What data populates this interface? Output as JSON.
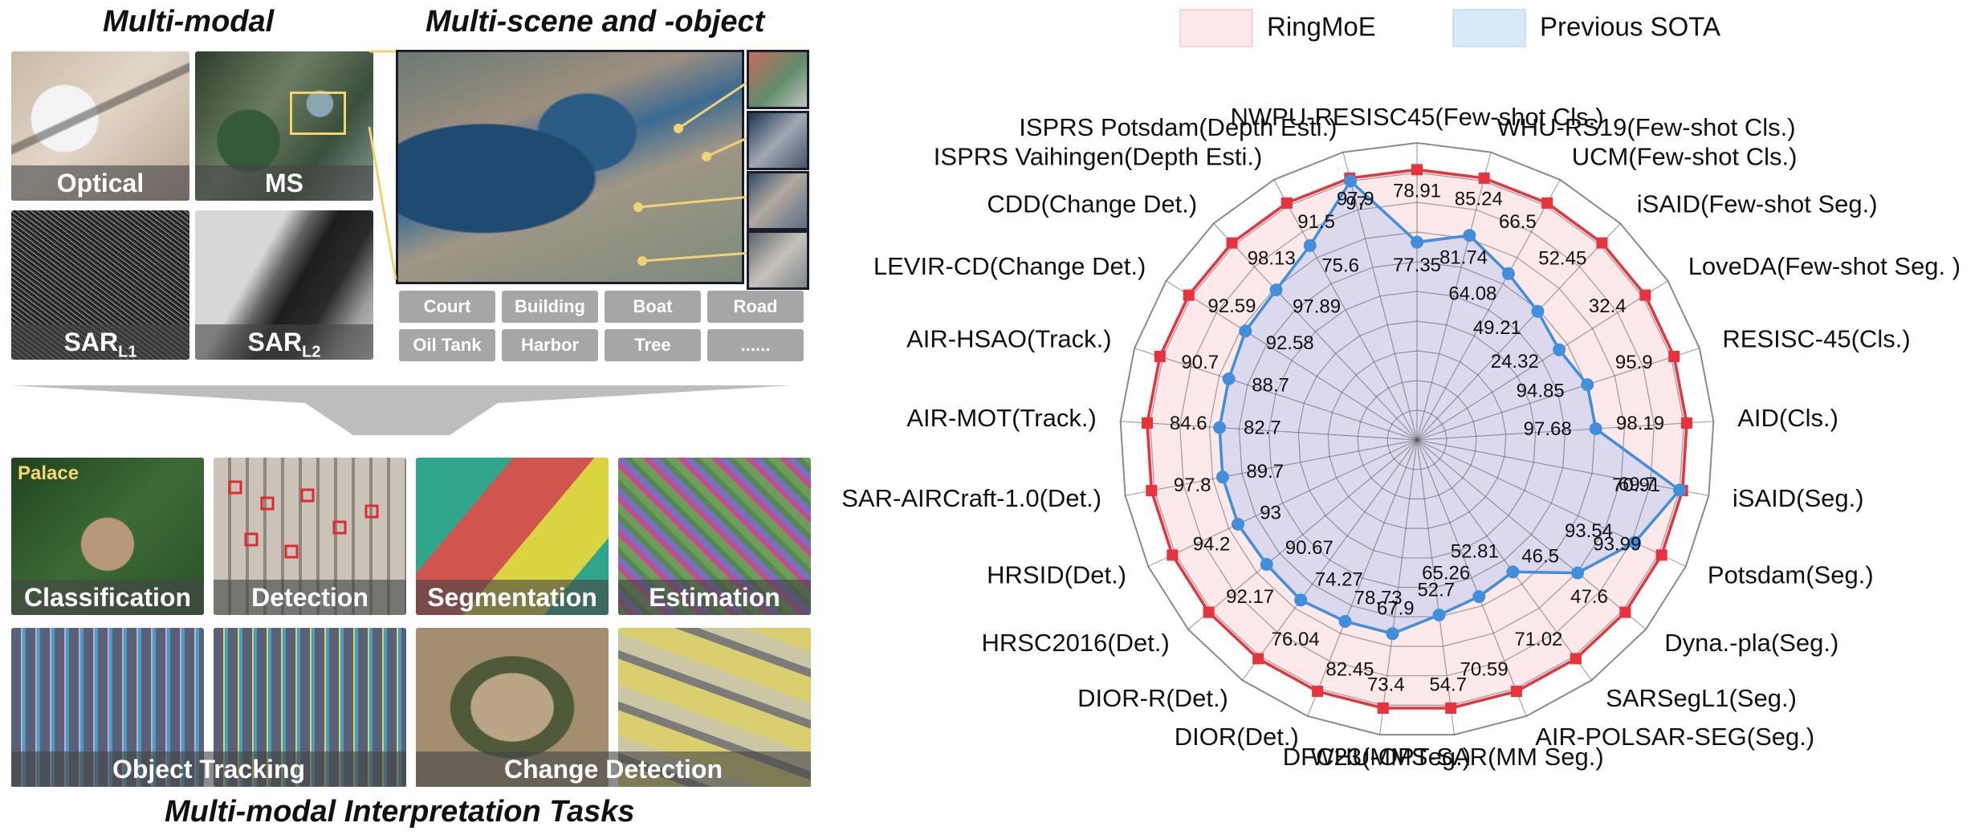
{
  "left_panel": {
    "heading_multimodal": "Multi-modal",
    "heading_multiscene": "Multi-scene and -object",
    "heading_tasks": "Multi-modal Interpretation Tasks",
    "modalities": [
      "Optical",
      "MS",
      "SAR",
      "SAR"
    ],
    "sar_subscripts": [
      "L1",
      "L2"
    ],
    "object_tags": [
      "Court",
      "Building",
      "Boat",
      "Road",
      "Oil Tank",
      "Harbor",
      "Tree",
      "......"
    ],
    "tasks": [
      "Classification",
      "Detection",
      "Segmentation",
      "Estimation",
      "Object Tracking",
      "Change Detection"
    ],
    "palace_label": "Palace"
  },
  "chart_data": {
    "type": "radar",
    "legend": [
      "RingMoE",
      "Previous SOTA"
    ],
    "legend_placement": "top",
    "colors": {
      "ringmoe": "#e8323c",
      "ringmoe_fill": "#fde8ea",
      "sota": "#3f8fdc",
      "sota_fill": "#d9ebf9"
    },
    "axes": [
      {
        "label": "NWPU-RESISC45(Few-shot Cls.)",
        "ringmoe": "78.91",
        "sota": "77.35"
      },
      {
        "label": "WHU-RS19(Few-shot Cls.)",
        "ringmoe": "85.24",
        "sota": "81.74"
      },
      {
        "label": "UCM(Few-shot Cls.)",
        "ringmoe": "66.5",
        "sota": "64.08"
      },
      {
        "label": "iSAID(Few-shot Seg.)",
        "ringmoe": "52.45",
        "sota": "49.21"
      },
      {
        "label": "LoveDA(Few-shot Seg. )",
        "ringmoe": "32.4",
        "sota": "24.32"
      },
      {
        "label": "RESISC-45(Cls.)",
        "ringmoe": "95.9",
        "sota": "94.85"
      },
      {
        "label": "AID(Cls.)",
        "ringmoe": "98.19",
        "sota": "97.68"
      },
      {
        "label": "iSAID(Seg.)",
        "ringmoe": "70.91",
        "sota": "69.7"
      },
      {
        "label": "Potsdam(Seg.)",
        "ringmoe": "93.99",
        "sota": "93.54"
      },
      {
        "label": "Dyna.-pla(Seg.)",
        "ringmoe": "47.6",
        "sota": "46.5"
      },
      {
        "label": "SARSegL1(Seg.)",
        "ringmoe": "71.02",
        "sota": "52.81"
      },
      {
        "label": "AIR-POLSAR-SEG(Seg.)",
        "ringmoe": "70.59",
        "sota": "65.26"
      },
      {
        "label": "WHU-OPT-SAR(MM Seg.)",
        "ringmoe": "54.7",
        "sota": "52.7"
      },
      {
        "label": "DFC23(MMSeg.)",
        "ringmoe": "73.4",
        "sota": "67.9"
      },
      {
        "label": "DIOR(Det.)",
        "ringmoe": "82.45",
        "sota": "78.73"
      },
      {
        "label": "DIOR-R(Det.)",
        "ringmoe": "76.04",
        "sota": "74.27"
      },
      {
        "label": "HRSC2016(Det.)",
        "ringmoe": "92.17",
        "sota": "90.67"
      },
      {
        "label": "HRSID(Det.)",
        "ringmoe": "94.2",
        "sota": "93"
      },
      {
        "label": "SAR-AIRCraft-1.0(Det.)",
        "ringmoe": "97.8",
        "sota": "89.7"
      },
      {
        "label": "AIR-MOT(Track.)",
        "ringmoe": "84.6",
        "sota": "82.7"
      },
      {
        "label": "AIR-HSAO(Track.)",
        "ringmoe": "90.7",
        "sota": "88.7"
      },
      {
        "label": "LEVIR-CD(Change Det.)",
        "ringmoe": "92.59",
        "sota": "92.58"
      },
      {
        "label": "CDD(Change Det.)",
        "ringmoe": "98.13",
        "sota": "97.89"
      },
      {
        "label": "ISPRS Vaihingen(Depth Esti.)",
        "ringmoe": "91.5",
        "sota": "75.6"
      },
      {
        "label": "ISPRS Potsdam(Depth Esti.)",
        "ringmoe": "97.9",
        "sota": "97"
      }
    ],
    "sota_relative_radius": [
      0.74,
      0.79,
      0.71,
      0.66,
      0.63,
      0.67,
      0.67,
      1.0,
      0.9,
      0.78,
      0.61,
      0.63,
      0.66,
      0.73,
      0.73,
      0.74,
      0.73,
      0.74,
      0.74,
      0.74,
      0.74,
      0.76,
      0.77,
      0.83,
      1.0
    ],
    "grid": true
  }
}
